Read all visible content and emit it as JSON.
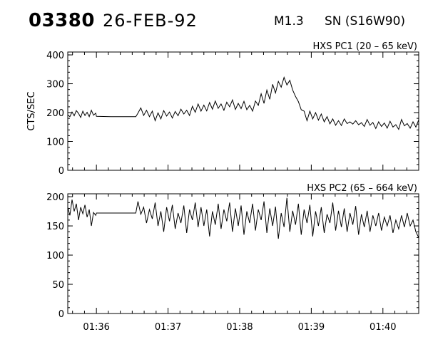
{
  "header": {
    "event_number": "03380",
    "date": "26-FEB-92",
    "goes_class": "M1.3",
    "location": "SN (S16W90)"
  },
  "chart_data": [
    {
      "type": "line",
      "title": "HXS PC1 (20 – 65 keV)",
      "ylabel": "CTS/SEC",
      "xlabel": "",
      "x_unit": "minutes after 01:35:00 UT",
      "xlim": [
        0.6,
        5.5
      ],
      "ylim": [
        0,
        410
      ],
      "yticks": [
        0,
        100,
        200,
        300,
        400
      ],
      "xtick_labels": [
        "01:36",
        "01:37",
        "01:38",
        "01:39",
        "01:40"
      ],
      "series": [
        {
          "points": [
            [
              0.6,
              192
            ],
            [
              0.63,
              186
            ],
            [
              0.66,
              202
            ],
            [
              0.69,
              189
            ],
            [
              0.72,
              207
            ],
            [
              0.75,
              197
            ],
            [
              0.78,
              183
            ],
            [
              0.81,
              205
            ],
            [
              0.84,
              190
            ],
            [
              0.87,
              201
            ],
            [
              0.9,
              186
            ],
            [
              0.93,
              208
            ],
            [
              0.96,
              191
            ],
            [
              0.99,
              198
            ],
            [
              1.0,
              187
            ],
            [
              1.2,
              186
            ],
            [
              1.4,
              186
            ],
            [
              1.55,
              186
            ],
            [
              1.58,
              198
            ],
            [
              1.62,
              216
            ],
            [
              1.66,
              190
            ],
            [
              1.7,
              208
            ],
            [
              1.74,
              186
            ],
            [
              1.78,
              205
            ],
            [
              1.82,
              172
            ],
            [
              1.86,
              199
            ],
            [
              1.9,
              178
            ],
            [
              1.94,
              207
            ],
            [
              1.98,
              188
            ],
            [
              2.02,
              202
            ],
            [
              2.06,
              181
            ],
            [
              2.1,
              204
            ],
            [
              2.14,
              189
            ],
            [
              2.18,
              212
            ],
            [
              2.22,
              195
            ],
            [
              2.26,
              208
            ],
            [
              2.3,
              190
            ],
            [
              2.34,
              222
            ],
            [
              2.38,
              201
            ],
            [
              2.42,
              230
            ],
            [
              2.46,
              205
            ],
            [
              2.5,
              226
            ],
            [
              2.54,
              206
            ],
            [
              2.58,
              235
            ],
            [
              2.62,
              212
            ],
            [
              2.66,
              240
            ],
            [
              2.7,
              215
            ],
            [
              2.74,
              230
            ],
            [
              2.78,
              208
            ],
            [
              2.82,
              236
            ],
            [
              2.86,
              220
            ],
            [
              2.9,
              244
            ],
            [
              2.94,
              211
            ],
            [
              2.98,
              232
            ],
            [
              3.02,
              214
            ],
            [
              3.06,
              239
            ],
            [
              3.1,
              210
            ],
            [
              3.14,
              225
            ],
            [
              3.18,
              205
            ],
            [
              3.22,
              240
            ],
            [
              3.26,
              225
            ],
            [
              3.3,
              265
            ],
            [
              3.34,
              232
            ],
            [
              3.38,
              278
            ],
            [
              3.42,
              246
            ],
            [
              3.46,
              298
            ],
            [
              3.5,
              268
            ],
            [
              3.54,
              308
            ],
            [
              3.58,
              288
            ],
            [
              3.62,
              322
            ],
            [
              3.66,
              296
            ],
            [
              3.7,
              312
            ],
            [
              3.74,
              278
            ],
            [
              3.78,
              256
            ],
            [
              3.82,
              238
            ],
            [
              3.86,
              210
            ],
            [
              3.9,
              205
            ],
            [
              3.94,
              172
            ],
            [
              3.98,
              205
            ],
            [
              4.02,
              178
            ],
            [
              4.06,
              200
            ],
            [
              4.1,
              174
            ],
            [
              4.14,
              195
            ],
            [
              4.18,
              168
            ],
            [
              4.22,
              186
            ],
            [
              4.26,
              161
            ],
            [
              4.3,
              178
            ],
            [
              4.34,
              156
            ],
            [
              4.38,
              172
            ],
            [
              4.42,
              155
            ],
            [
              4.46,
              178
            ],
            [
              4.5,
              162
            ],
            [
              4.54,
              168
            ],
            [
              4.58,
              160
            ],
            [
              4.62,
              172
            ],
            [
              4.66,
              158
            ],
            [
              4.7,
              165
            ],
            [
              4.74,
              152
            ],
            [
              4.78,
              176
            ],
            [
              4.82,
              156
            ],
            [
              4.86,
              166
            ],
            [
              4.9,
              145
            ],
            [
              4.94,
              168
            ],
            [
              4.98,
              152
            ],
            [
              5.02,
              164
            ],
            [
              5.06,
              146
            ],
            [
              5.1,
              170
            ],
            [
              5.14,
              150
            ],
            [
              5.18,
              158
            ],
            [
              5.22,
              142
            ],
            [
              5.26,
              176
            ],
            [
              5.3,
              154
            ],
            [
              5.34,
              162
            ],
            [
              5.38,
              146
            ],
            [
              5.42,
              168
            ],
            [
              5.46,
              150
            ],
            [
              5.5,
              175
            ]
          ]
        }
      ]
    },
    {
      "type": "line",
      "title": "HXS PC2 (65 – 664 keV)",
      "ylabel": "",
      "xlabel": "",
      "x_unit": "minutes after 01:35:00 UT",
      "xlim": [
        0.6,
        5.5
      ],
      "ylim": [
        0,
        205
      ],
      "yticks": [
        0,
        50,
        100,
        150,
        200
      ],
      "xtick_labels": [
        "01:36",
        "01:37",
        "01:38",
        "01:39",
        "01:40"
      ],
      "series": [
        {
          "points": [
            [
              0.6,
              182
            ],
            [
              0.63,
              168
            ],
            [
              0.66,
              195
            ],
            [
              0.69,
              175
            ],
            [
              0.72,
              188
            ],
            [
              0.75,
              160
            ],
            [
              0.78,
              182
            ],
            [
              0.81,
              171
            ],
            [
              0.84,
              186
            ],
            [
              0.87,
              165
            ],
            [
              0.9,
              178
            ],
            [
              0.93,
              150
            ],
            [
              0.96,
              173
            ],
            [
              0.99,
              168
            ],
            [
              1.0,
              172
            ],
            [
              1.2,
              172
            ],
            [
              1.4,
              172
            ],
            [
              1.55,
              172
            ],
            [
              1.58,
              192
            ],
            [
              1.62,
              170
            ],
            [
              1.66,
              182
            ],
            [
              1.7,
              155
            ],
            [
              1.74,
              178
            ],
            [
              1.78,
              162
            ],
            [
              1.82,
              190
            ],
            [
              1.86,
              150
            ],
            [
              1.9,
              175
            ],
            [
              1.94,
              140
            ],
            [
              1.98,
              182
            ],
            [
              2.02,
              158
            ],
            [
              2.06,
              186
            ],
            [
              2.1,
              145
            ],
            [
              2.14,
              172
            ],
            [
              2.18,
              155
            ],
            [
              2.22,
              185
            ],
            [
              2.26,
              138
            ],
            [
              2.3,
              178
            ],
            [
              2.34,
              160
            ],
            [
              2.38,
              190
            ],
            [
              2.42,
              148
            ],
            [
              2.46,
              182
            ],
            [
              2.5,
              150
            ],
            [
              2.54,
              178
            ],
            [
              2.58,
              132
            ],
            [
              2.62,
              175
            ],
            [
              2.66,
              152
            ],
            [
              2.7,
              188
            ],
            [
              2.74,
              145
            ],
            [
              2.78,
              178
            ],
            [
              2.82,
              158
            ],
            [
              2.86,
              190
            ],
            [
              2.9,
              140
            ],
            [
              2.94,
              180
            ],
            [
              2.98,
              150
            ],
            [
              3.02,
              185
            ],
            [
              3.06,
              135
            ],
            [
              3.1,
              175
            ],
            [
              3.14,
              155
            ],
            [
              3.18,
              188
            ],
            [
              3.22,
              142
            ],
            [
              3.26,
              178
            ],
            [
              3.3,
              160
            ],
            [
              3.34,
              192
            ],
            [
              3.38,
              138
            ],
            [
              3.42,
              180
            ],
            [
              3.46,
              150
            ],
            [
              3.5,
              183
            ],
            [
              3.54,
              128
            ],
            [
              3.58,
              172
            ],
            [
              3.62,
              148
            ],
            [
              3.66,
              198
            ],
            [
              3.7,
              140
            ],
            [
              3.74,
              176
            ],
            [
              3.78,
              152
            ],
            [
              3.82,
              188
            ],
            [
              3.86,
              135
            ],
            [
              3.9,
              178
            ],
            [
              3.94,
              155
            ],
            [
              3.98,
              186
            ],
            [
              4.02,
              132
            ],
            [
              4.06,
              175
            ],
            [
              4.1,
              150
            ],
            [
              4.14,
              182
            ],
            [
              4.18,
              138
            ],
            [
              4.22,
              170
            ],
            [
              4.26,
              155
            ],
            [
              4.3,
              190
            ],
            [
              4.34,
              142
            ],
            [
              4.38,
              176
            ],
            [
              4.42,
              148
            ],
            [
              4.46,
              180
            ],
            [
              4.5,
              140
            ],
            [
              4.54,
              172
            ],
            [
              4.58,
              152
            ],
            [
              4.62,
              184
            ],
            [
              4.66,
              135
            ],
            [
              4.7,
              170
            ],
            [
              4.74,
              148
            ],
            [
              4.78,
              176
            ],
            [
              4.82,
              140
            ],
            [
              4.86,
              168
            ],
            [
              4.9,
              150
            ],
            [
              4.94,
              172
            ],
            [
              4.98,
              142
            ],
            [
              5.02,
              165
            ],
            [
              5.06,
              150
            ],
            [
              5.1,
              168
            ],
            [
              5.14,
              138
            ],
            [
              5.18,
              160
            ],
            [
              5.22,
              145
            ],
            [
              5.26,
              168
            ],
            [
              5.3,
              148
            ],
            [
              5.34,
              172
            ],
            [
              5.38,
              150
            ],
            [
              5.42,
              160
            ],
            [
              5.46,
              140
            ],
            [
              5.5,
              130
            ]
          ]
        }
      ]
    }
  ]
}
